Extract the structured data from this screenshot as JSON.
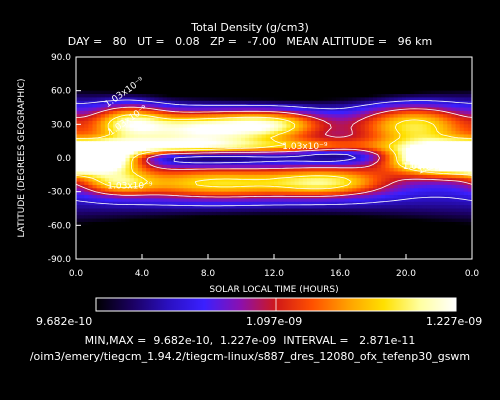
{
  "header": {
    "title": "Total Density (g/cm3)",
    "subtitle": "DAY =   80   UT =   0.08   ZP =   -7.00   MEAN ALTITUDE =   96 km"
  },
  "chart_data": {
    "type": "heatmap",
    "xlabel": "SOLAR LOCAL TIME (HOURS)",
    "ylabel": "LATITUDE (DEGREES GEOGRAPHIC)",
    "xlim": [
      0,
      24
    ],
    "ylim": [
      -90,
      90
    ],
    "x_ticks": [
      "0.0",
      "4.0",
      "8.0",
      "12.0",
      "16.0",
      "20.0",
      "0.0"
    ],
    "y_ticks": [
      "90.0",
      "60.0",
      "30.0",
      "0.0",
      "-30.0",
      "-60.0",
      "-90.0"
    ],
    "contour_labels": [
      "1.03x10⁻⁹",
      "1.03x10⁻⁹",
      "1.03x10⁻⁹",
      "1.03x10⁻⁹",
      "1.03x10⁻⁹",
      "1.03x10⁻⁹"
    ],
    "regions": [
      {
        "x": 1.2,
        "y": 0,
        "sx": 1.8,
        "sy": 9,
        "v": 1.0
      },
      {
        "x": 22.0,
        "y": 0,
        "sx": 2.2,
        "sy": 10,
        "v": 1.0
      },
      {
        "x": 7.5,
        "y": 26,
        "sx": 2.8,
        "sy": 11,
        "v": 0.7
      },
      {
        "x": 12.0,
        "y": 30,
        "sx": 2.2,
        "sy": 9,
        "v": 0.55
      },
      {
        "x": 20.5,
        "y": 30,
        "sx": 2.5,
        "sy": 13,
        "v": 0.6
      },
      {
        "x": 3.2,
        "y": 32,
        "sx": 1.6,
        "sy": 12,
        "v": 0.55
      },
      {
        "x": 8.5,
        "y": -23,
        "sx": 4.0,
        "sy": 10,
        "v": 0.55
      },
      {
        "x": 2.5,
        "y": -22,
        "sx": 1.5,
        "sy": 8,
        "v": 0.4
      },
      {
        "x": 15.5,
        "y": -22,
        "sx": 2.5,
        "sy": 9,
        "v": 0.5
      },
      {
        "x": 5.0,
        "y": 10,
        "sx": 3.0,
        "sy": 5,
        "v": 0.45
      },
      {
        "x": 13.0,
        "y": 10,
        "sx": 4.0,
        "sy": 5,
        "v": 0.4
      },
      {
        "x": 8.0,
        "y": 0,
        "sx": 3.5,
        "sy": 5,
        "v": -0.3
      },
      {
        "x": 16.0,
        "y": 2,
        "sx": 2.5,
        "sy": 5,
        "v": -0.25
      },
      {
        "x": 12.0,
        "y": 70,
        "sx": 7.0,
        "sy": 12,
        "v": -0.4
      },
      {
        "x": 12.0,
        "y": -70,
        "sx": 7.0,
        "sy": 12,
        "v": -0.4
      }
    ],
    "colorbar": {
      "min_label": "9.682e-10",
      "mid_label": "1.097e-09",
      "max_label": "1.227e-09"
    }
  },
  "footer": {
    "minmax": "MIN,MAX =  9.682e-10,  1.227e-09  INTERVAL =   2.871e-11",
    "path": "/oim3/emery/tiegcm_1.94.2/tiegcm-linux/s887_dres_12080_ofx_tefenp30_gswm"
  },
  "colors": {
    "background": "#000000",
    "text": "#ffffff",
    "colormap": [
      "#000000",
      "#1a0060",
      "#2a10c0",
      "#3a20ff",
      "#8a10b0",
      "#d01818",
      "#ff5000",
      "#ffa000",
      "#ffe000",
      "#ffffa0",
      "#ffffff"
    ]
  }
}
